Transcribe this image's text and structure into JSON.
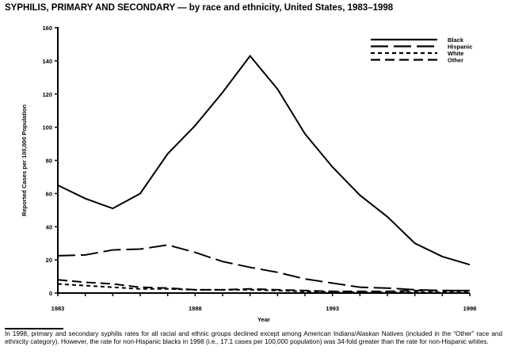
{
  "title": "SYPHILIS, PRIMARY AND SECONDARY — by race and ethnicity, United States, 1983–1998",
  "footnote": "In 1998, primary and secondary syphilis rates for all racial and ethnic groups declined except among American Indians/Alaskan Natives (included in the “Other” race and ethnicity category). However, the rate for non-Hispanic blacks in 1998 (i.e., 17.1 cases per 100,000 population) was 34-fold greater than the rate for non-Hispanic whites.",
  "chart_data": {
    "type": "line",
    "title": "SYPHILIS, PRIMARY AND SECONDARY — by race and ethnicity, United States, 1983–1998",
    "xlabel": "Year",
    "ylabel": "Reported Cases per 100,000 Population",
    "x": [
      1983,
      1984,
      1985,
      1986,
      1987,
      1988,
      1989,
      1990,
      1991,
      1992,
      1993,
      1994,
      1995,
      1996,
      1997,
      1998
    ],
    "xlim": [
      1983,
      1998
    ],
    "ylim": [
      0,
      160
    ],
    "xticks": [
      "1983",
      "1988",
      "1993",
      "1998"
    ],
    "yticks": [
      "0",
      "20",
      "40",
      "60",
      "80",
      "100",
      "120",
      "140",
      "160"
    ],
    "legend_position": "top-right",
    "grid": false,
    "series": [
      {
        "name": "Black",
        "dash": "solid",
        "values": [
          65,
          57,
          51,
          60,
          84,
          101,
          121,
          143,
          123,
          96,
          76,
          59,
          46,
          30,
          22,
          17.1
        ]
      },
      {
        "name": "Hispanic",
        "dash": "long",
        "values": [
          22.5,
          23,
          26,
          26.5,
          29,
          24.5,
          19,
          15.5,
          12.5,
          8.5,
          6,
          3.5,
          3,
          2,
          1.5,
          1.5
        ]
      },
      {
        "name": "White",
        "dash": "short",
        "values": [
          5.5,
          4.5,
          3.5,
          2.5,
          2.5,
          2,
          2,
          2,
          1.5,
          1,
          0.7,
          0.5,
          0.5,
          0.5,
          0.5,
          0.5
        ]
      },
      {
        "name": "Other",
        "dash": "medium",
        "values": [
          8,
          6.5,
          5.5,
          3.5,
          3,
          2,
          2,
          2.5,
          2,
          1.5,
          1,
          1,
          1,
          1.5,
          1.5,
          1.5
        ]
      }
    ]
  }
}
